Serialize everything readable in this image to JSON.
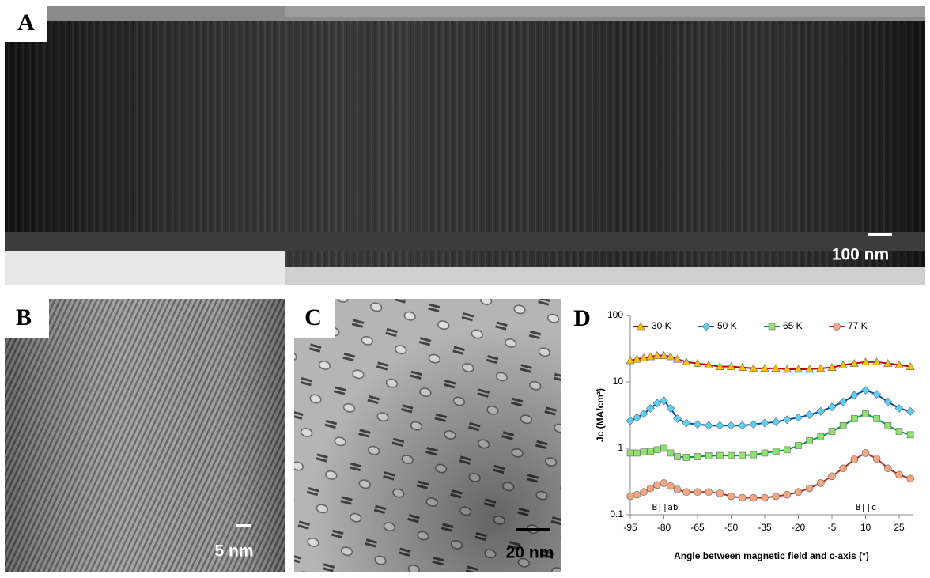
{
  "panels": [
    {
      "label": "A",
      "scale_bar": "100 nm"
    },
    {
      "label": "B",
      "scale_bar": "5 nm"
    },
    {
      "label": "C",
      "scale_bar": "20 nm"
    }
  ],
  "chart_data": {
    "type": "line",
    "panel_label": "D",
    "xlabel": "Angle between magnetic field and c-axis (°)",
    "ylabel": "Jc (MA/cm²)",
    "x": [
      -95,
      -92,
      -89,
      -86,
      -83,
      -80,
      -77,
      -74,
      -70,
      -65,
      -60,
      -55,
      -50,
      -45,
      -40,
      -35,
      -30,
      -25,
      -20,
      -15,
      -10,
      -5,
      0,
      5,
      10,
      15,
      20,
      25,
      30
    ],
    "series": [
      {
        "name": "30 K",
        "color": "#c00000",
        "marker_color": "#ffc000",
        "marker": "triangle",
        "values": [
          21,
          22,
          23,
          24,
          25,
          25,
          24,
          22,
          20,
          19,
          18,
          17,
          17,
          16.5,
          16,
          16,
          16,
          15.5,
          15.5,
          15.5,
          16,
          16.5,
          18,
          19,
          20,
          20,
          19,
          18,
          17
        ]
      },
      {
        "name": "50 K",
        "color": "#0050b0",
        "marker_color": "#5bd0f5",
        "marker": "diamond",
        "values": [
          2.6,
          2.9,
          3.3,
          4,
          4.8,
          5.2,
          4,
          2.8,
          2.4,
          2.3,
          2.2,
          2.2,
          2.2,
          2.2,
          2.3,
          2.4,
          2.5,
          2.7,
          2.9,
          3.2,
          3.6,
          4.2,
          5,
          6.3,
          7.5,
          6.5,
          5,
          4,
          3.6
        ]
      },
      {
        "name": "65 K",
        "color": "#00a040",
        "marker_color": "#92e070",
        "marker": "square",
        "values": [
          0.85,
          0.85,
          0.88,
          0.9,
          0.95,
          1.0,
          0.85,
          0.75,
          0.73,
          0.75,
          0.77,
          0.78,
          0.78,
          0.78,
          0.8,
          0.85,
          0.9,
          0.95,
          1.1,
          1.3,
          1.5,
          1.8,
          2.2,
          2.8,
          3.3,
          2.8,
          2.2,
          1.8,
          1.6
        ]
      },
      {
        "name": "77 K",
        "color": "#b03020",
        "marker_color": "#f4a582",
        "marker": "circle",
        "values": [
          0.19,
          0.2,
          0.22,
          0.25,
          0.28,
          0.3,
          0.27,
          0.24,
          0.22,
          0.22,
          0.22,
          0.21,
          0.19,
          0.18,
          0.18,
          0.18,
          0.19,
          0.2,
          0.22,
          0.25,
          0.3,
          0.38,
          0.5,
          0.68,
          0.85,
          0.7,
          0.5,
          0.4,
          0.35
        ]
      }
    ],
    "xlim": [
      -95,
      31
    ],
    "xticks": [
      -95,
      -80,
      -65,
      -50,
      -35,
      -20,
      -5,
      10,
      25
    ],
    "ylim": [
      0.1,
      100
    ],
    "yticks": [
      0.1,
      1,
      10,
      100
    ],
    "log_y": true,
    "grid": false,
    "legend": "top",
    "annotations": [
      "B||ab",
      "B||c"
    ]
  }
}
